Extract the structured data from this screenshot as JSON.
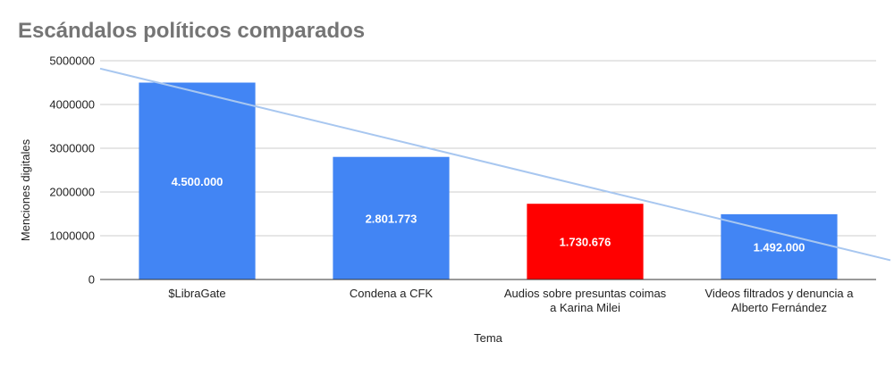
{
  "chart_data": {
    "type": "bar",
    "title": "Escándalos políticos comparados",
    "xlabel": "Tema",
    "ylabel": "Menciones digitales",
    "categories": [
      [
        "$LibraGate"
      ],
      [
        "Condena a CFK"
      ],
      [
        "Audios sobre presuntas coimas",
        "a Karina Milei"
      ],
      [
        "Videos filtrados y denuncia a",
        "Alberto Fernández"
      ]
    ],
    "values": [
      4500000,
      2801773,
      1730676,
      1492000
    ],
    "data_labels": [
      "4.500.000",
      "2.801.773",
      "1.730.676",
      "1.492.000"
    ],
    "bar_colors": [
      "#4285f4",
      "#4285f4",
      "#ff0000",
      "#4285f4"
    ],
    "ylim": [
      0,
      5000000
    ],
    "yticks": [
      0,
      1000000,
      2000000,
      3000000,
      4000000,
      5000000
    ],
    "ytick_labels": [
      "0",
      "1000000",
      "2000000",
      "3000000",
      "4000000",
      "5000000"
    ],
    "grid": true,
    "legend": "none",
    "trendline": {
      "type": "linear",
      "color": "#a8c7f0",
      "start_value": 4820000,
      "end_value": 440000
    }
  }
}
